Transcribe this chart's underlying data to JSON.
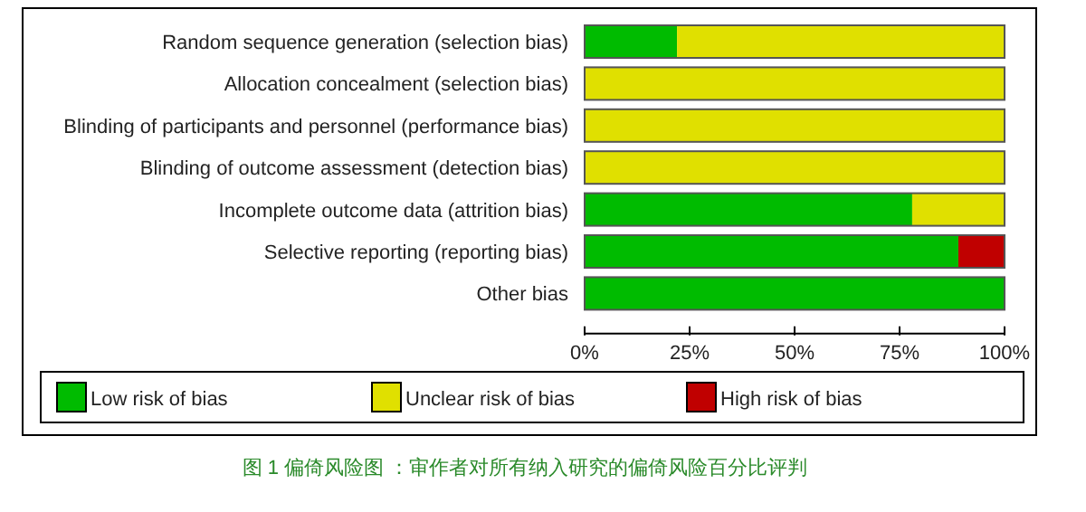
{
  "chart_data": {
    "type": "bar",
    "orientation": "horizontal",
    "stacked": true,
    "categories": [
      "Random sequence generation (selection bias)",
      "Allocation concealment (selection bias)",
      "Blinding of participants and personnel (performance bias)",
      "Blinding of outcome assessment (detection bias)",
      "Incomplete outcome data (attrition bias)",
      "Selective reporting (reporting bias)",
      "Other bias"
    ],
    "series": [
      {
        "name": "Low risk of bias",
        "color": "#00bb00",
        "values": [
          22,
          0,
          0,
          0,
          78,
          89,
          100
        ]
      },
      {
        "name": "Unclear risk of bias",
        "color": "#e0e000",
        "values": [
          78,
          100,
          100,
          100,
          22,
          0,
          0
        ]
      },
      {
        "name": "High risk of bias",
        "color": "#c00000",
        "values": [
          0,
          0,
          0,
          0,
          0,
          11,
          0
        ]
      }
    ],
    "xlim": [
      0,
      100
    ],
    "xticks": [
      {
        "value": 0,
        "label": "0%"
      },
      {
        "value": 25,
        "label": "25%"
      },
      {
        "value": 50,
        "label": "50%"
      },
      {
        "value": 75,
        "label": "75%"
      },
      {
        "value": 100,
        "label": "100%"
      }
    ],
    "legend": "bottom",
    "grid": false,
    "annotations": [
      "图 1 偏倚风险图 ：审作者对所有纳入研究的偏倚风险百分比评判"
    ]
  }
}
